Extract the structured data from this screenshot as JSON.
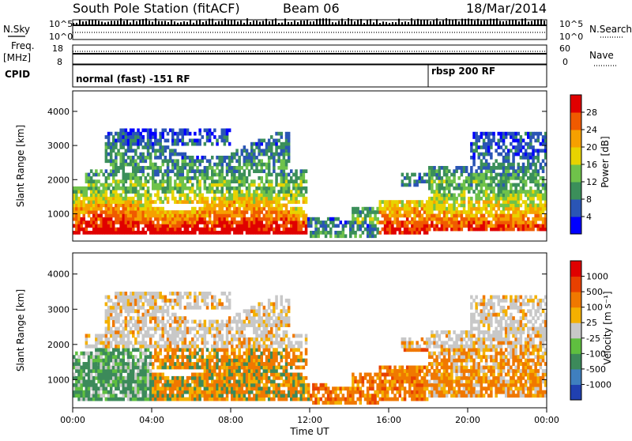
{
  "header": {
    "station": "South Pole Station (fitACF)",
    "beam": "Beam 06",
    "date": "18/Mar/2014"
  },
  "top_strip": {
    "nsky_label": "N.Sky",
    "nsearch_label": "N.Search",
    "left_ticks": [
      "10^5",
      "10^0"
    ],
    "right_ticks": [
      "10^5",
      "10^0"
    ],
    "freq_label": "Freq.",
    "freq_unit": "[MHz]",
    "freq_ticks": [
      "18",
      "8"
    ],
    "nave_label": "Nave",
    "nave_ticks": [
      "60",
      "0"
    ],
    "cpid_label": "CPID",
    "cpid_segments": [
      {
        "text": "normal (fast) -151 RF",
        "start_hour": 0
      },
      {
        "text": "rbsp 200 RF",
        "start_hour": 18
      }
    ]
  },
  "x_axis": {
    "label": "Time UT",
    "ticks": [
      "00:00",
      "04:00",
      "08:00",
      "12:00",
      "16:00",
      "20:00",
      "00:00"
    ]
  },
  "chart_data": [
    {
      "type": "heatmap",
      "parameter": "power",
      "ylabel": "Slant Range [km]",
      "yticks": [
        1000,
        2000,
        3000,
        4000
      ],
      "ylim": [
        200,
        4600
      ],
      "xlim_hours": [
        0,
        24
      ],
      "colorbar": {
        "label": "Power [dB]",
        "ticks": [
          "4",
          "8",
          "12",
          "16",
          "20",
          "24",
          "28"
        ],
        "colors": [
          "#0000ff",
          "#2a55b5",
          "#3b8f5a",
          "#6fc24a",
          "#e8d300",
          "#f6a000",
          "#f05a00",
          "#e00000"
        ]
      }
    },
    {
      "type": "heatmap",
      "parameter": "velocity",
      "ylabel": "Slant Range [km]",
      "yticks": [
        1000,
        2000,
        3000,
        4000
      ],
      "ylim": [
        200,
        4600
      ],
      "xlim_hours": [
        0,
        24
      ],
      "colorbar": {
        "label": "Velocity [m s⁻¹]",
        "ticks": [
          "1000",
          "500",
          "100",
          "25",
          "-25",
          "-100",
          "-500",
          "-1000"
        ],
        "colors": [
          "#2040b0",
          "#3f7fbf",
          "#3c8a5a",
          "#5fbf3f",
          "#c8c8c8",
          "#f4b000",
          "#f07800",
          "#e84000",
          "#e00000"
        ]
      }
    }
  ]
}
